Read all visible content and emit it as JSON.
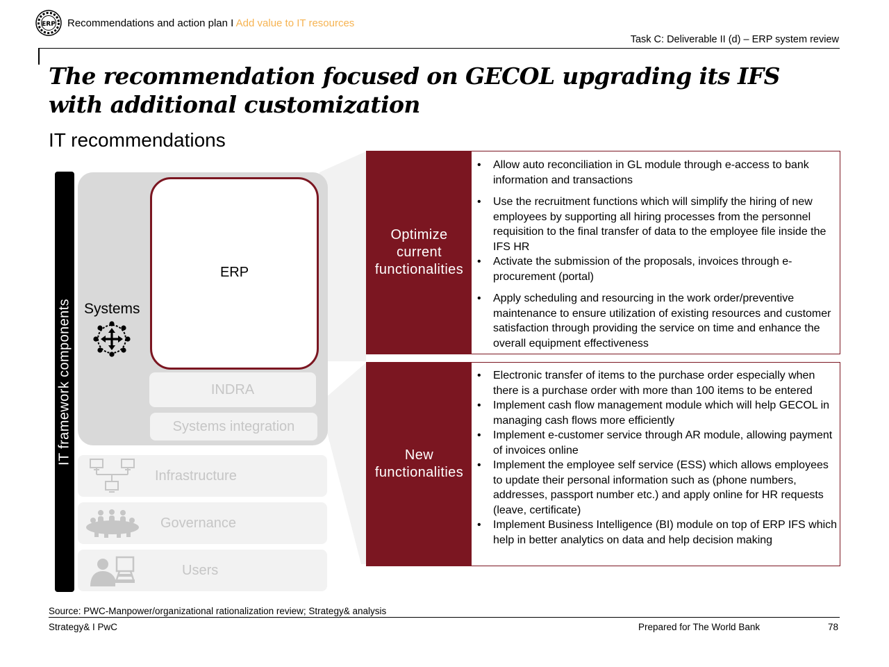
{
  "header": {
    "logo_text": "ERP",
    "breadcrumb_main": "Recommendations and action plan I ",
    "breadcrumb_accent": "Add value to IT resources",
    "task": "Task C: Deliverable II (d) – ERP system review"
  },
  "title": "The recommendation focused on GECOL upgrading its IFS with additional customization",
  "subtitle": "IT recommendations",
  "framework": {
    "vertical_label": "IT framework components",
    "systems_label": "Systems",
    "erp_label": "ERP",
    "indra_label": "INDRA",
    "systems_integration_label": "Systems integration",
    "layers": [
      "Infrastructure",
      "Governance",
      "Users"
    ],
    "icons": {
      "systems": "network-arrows-icon",
      "infrastructure": "network-computers-icon",
      "governance": "people-group-icon",
      "users": "user-laptop-icon"
    }
  },
  "recommendations": [
    {
      "heading": "Optimize current functionalities",
      "items": [
        "Allow auto reconciliation in GL module through e-access to bank information and transactions",
        "Use the recruitment functions which will simplify the hiring of new employees by supporting all hiring processes from the personnel requisition to the final transfer of data to the employee file inside the IFS HR",
        "Activate the submission of the proposals, invoices through e-procurement (portal)",
        "Apply scheduling and resourcing in the work order/preventive maintenance to ensure utilization of existing resources and customer satisfaction through providing the service on time and enhance the overall equipment effectiveness"
      ]
    },
    {
      "heading": "New functionalities",
      "items": [
        "Electronic transfer of items to the purchase order especially when there is a purchase order with more than 100 items to be entered",
        "Implement cash flow management module which will help GECOL in managing cash flows more efficiently",
        "Implement e-customer service through AR module, allowing payment of invoices online",
        "Implement the employee self service (ESS) which allows employees to update their personal information such as (phone numbers, addresses, passport number etc.) and apply online for HR requests (leave, certificate)",
        "Implement Business Intelligence (BI) module on top of ERP IFS which help in better analytics on data and help decision making"
      ]
    }
  ],
  "footer": {
    "source": "Source: PWC-Manpower/organizational rationalization review; Strategy& analysis",
    "left": "Strategy& I PwC",
    "prepared": "Prepared for The World Bank",
    "page": "78"
  },
  "colors": {
    "accent_red": "#7b1621",
    "accent_orange": "#f6b351",
    "panel_grey": "#d9d9d9",
    "layer_grey": "#f2f2f2",
    "faded_text": "#c6c6c6"
  }
}
